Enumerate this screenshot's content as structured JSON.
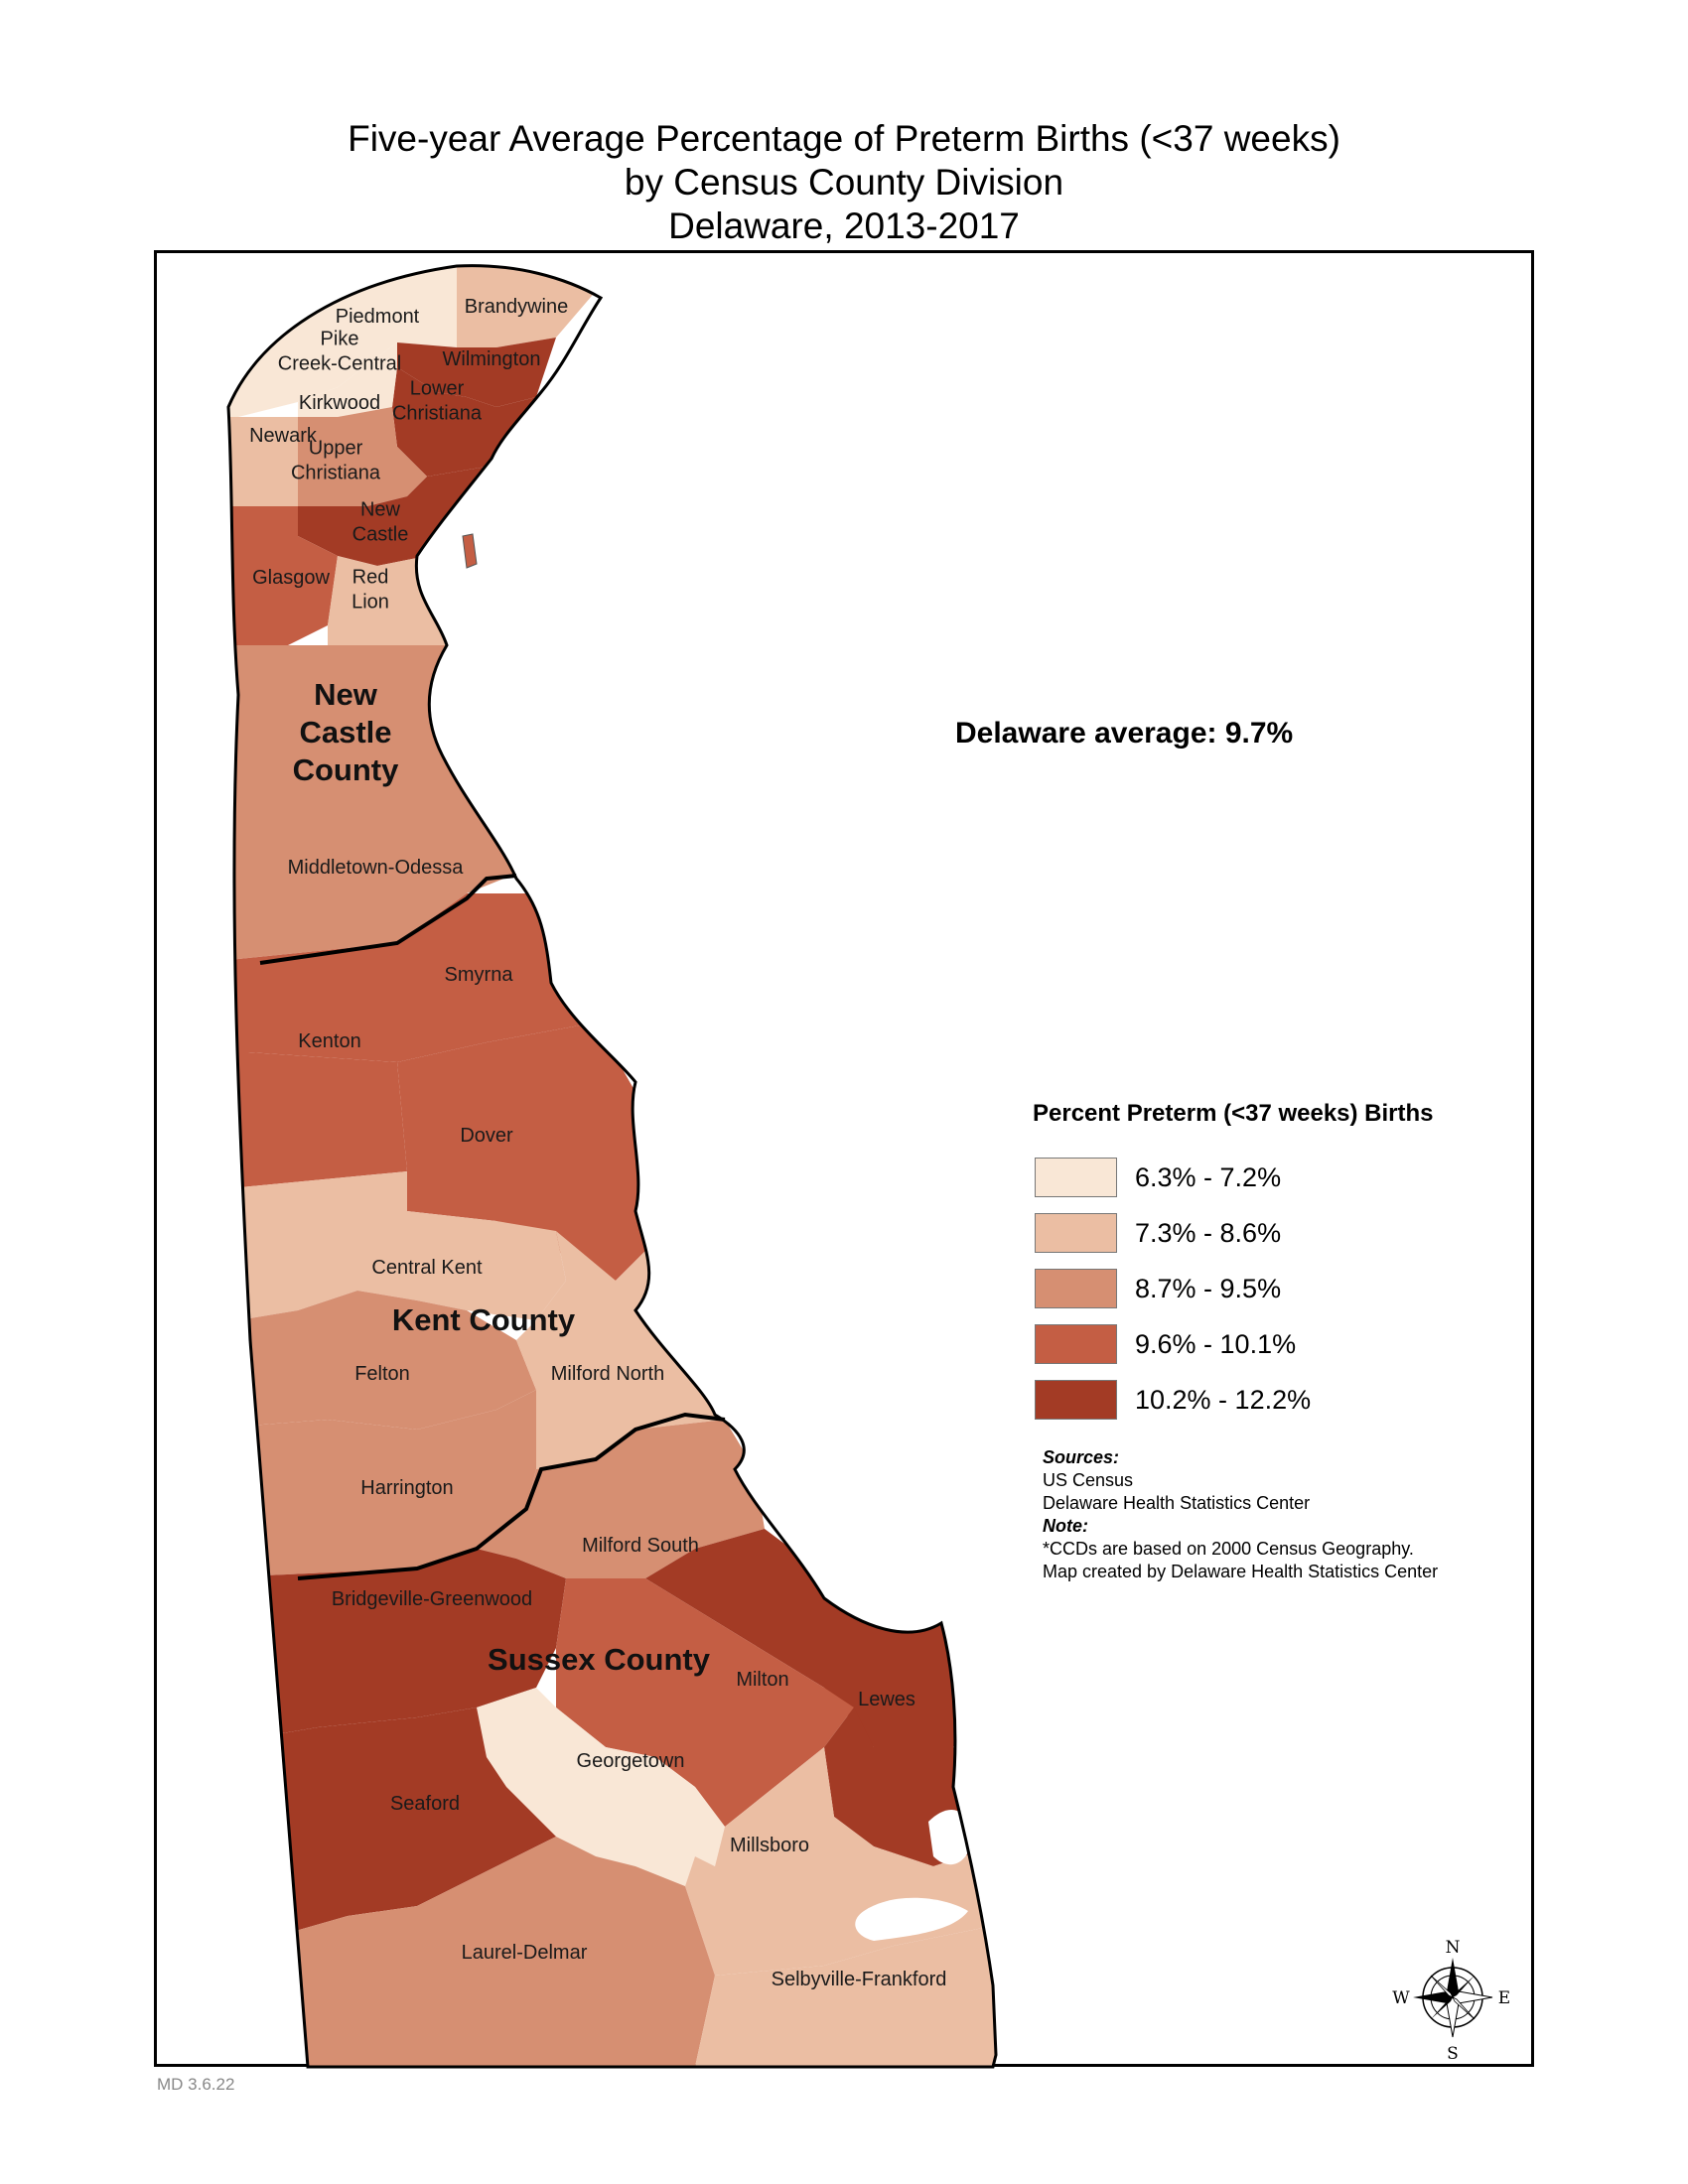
{
  "title": {
    "line1": "Five-year Average Percentage of Preterm Births (<37 weeks)",
    "line2": "by Census County Division",
    "line3": "Delaware, 2013-2017"
  },
  "state_average": "Delaware average:  9.7%",
  "legend": {
    "title": "Percent Preterm (<37 weeks) Births",
    "classes": [
      {
        "label": "6.3% - 7.2%",
        "color": "#f9e7d6"
      },
      {
        "label": "7.3% - 8.6%",
        "color": "#ebbea3"
      },
      {
        "label": "8.7% - 9.5%",
        "color": "#d68f72"
      },
      {
        "label": "9.6% - 10.1%",
        "color": "#c45e44"
      },
      {
        "label": "10.2% - 12.2%",
        "color": "#a33b25"
      }
    ]
  },
  "counties": [
    {
      "lines": [
        "New",
        "Castle",
        "County"
      ]
    },
    {
      "lines": [
        "Kent County"
      ]
    },
    {
      "lines": [
        "Sussex County"
      ]
    }
  ],
  "regions": [
    {
      "lines": [
        "Piedmont"
      ],
      "class": 0
    },
    {
      "lines": [
        "Brandywine"
      ],
      "class": 1
    },
    {
      "lines": [
        "Pike",
        "Creek-Central"
      ],
      "class": 0
    },
    {
      "lines": [
        "Wilmington"
      ],
      "class": 4
    },
    {
      "lines": [
        "Kirkwood"
      ],
      "class": 0
    },
    {
      "lines": [
        "Lower",
        "Christiana"
      ],
      "class": 4
    },
    {
      "lines": [
        "Newark"
      ],
      "class": 1
    },
    {
      "lines": [
        "Upper",
        "Christiana"
      ],
      "class": 2
    },
    {
      "lines": [
        "New",
        "Castle"
      ],
      "class": 4
    },
    {
      "lines": [
        "Glasgow"
      ],
      "class": 3
    },
    {
      "lines": [
        "Red",
        "Lion"
      ],
      "class": 1
    },
    {
      "lines": [
        "Middletown-Odessa"
      ],
      "class": 2
    },
    {
      "lines": [
        "Smyrna"
      ],
      "class": 3
    },
    {
      "lines": [
        "Kenton"
      ],
      "class": 3
    },
    {
      "lines": [
        "Dover"
      ],
      "class": 3
    },
    {
      "lines": [
        "Central Kent"
      ],
      "class": 1
    },
    {
      "lines": [
        "Felton"
      ],
      "class": 2
    },
    {
      "lines": [
        "Milford North"
      ],
      "class": 1
    },
    {
      "lines": [
        "Harrington"
      ],
      "class": 2
    },
    {
      "lines": [
        "Milford South"
      ],
      "class": 2
    },
    {
      "lines": [
        "Bridgeville-Greenwood"
      ],
      "class": 4
    },
    {
      "lines": [
        "Milton"
      ],
      "class": 3
    },
    {
      "lines": [
        "Lewes"
      ],
      "class": 4
    },
    {
      "lines": [
        "Georgetown"
      ],
      "class": 0
    },
    {
      "lines": [
        "Seaford"
      ],
      "class": 4
    },
    {
      "lines": [
        "Millsboro"
      ],
      "class": 1
    },
    {
      "lines": [
        "Laurel-Delmar"
      ],
      "class": 2
    },
    {
      "lines": [
        "Selbyville-Frankford"
      ],
      "class": 1
    }
  ],
  "notes": {
    "sources_header": "Sources:",
    "source1": "US Census",
    "source2": "Delaware Health Statistics Center",
    "note_header": "Note:",
    "note1": "*CCDs are based on 2000 Census Geography.",
    "note2": "Map created by Delaware Health Statistics Center"
  },
  "compass": {
    "n": "N",
    "s": "S",
    "e": "E",
    "w": "W"
  },
  "footer_code": "MD 3.6.22"
}
